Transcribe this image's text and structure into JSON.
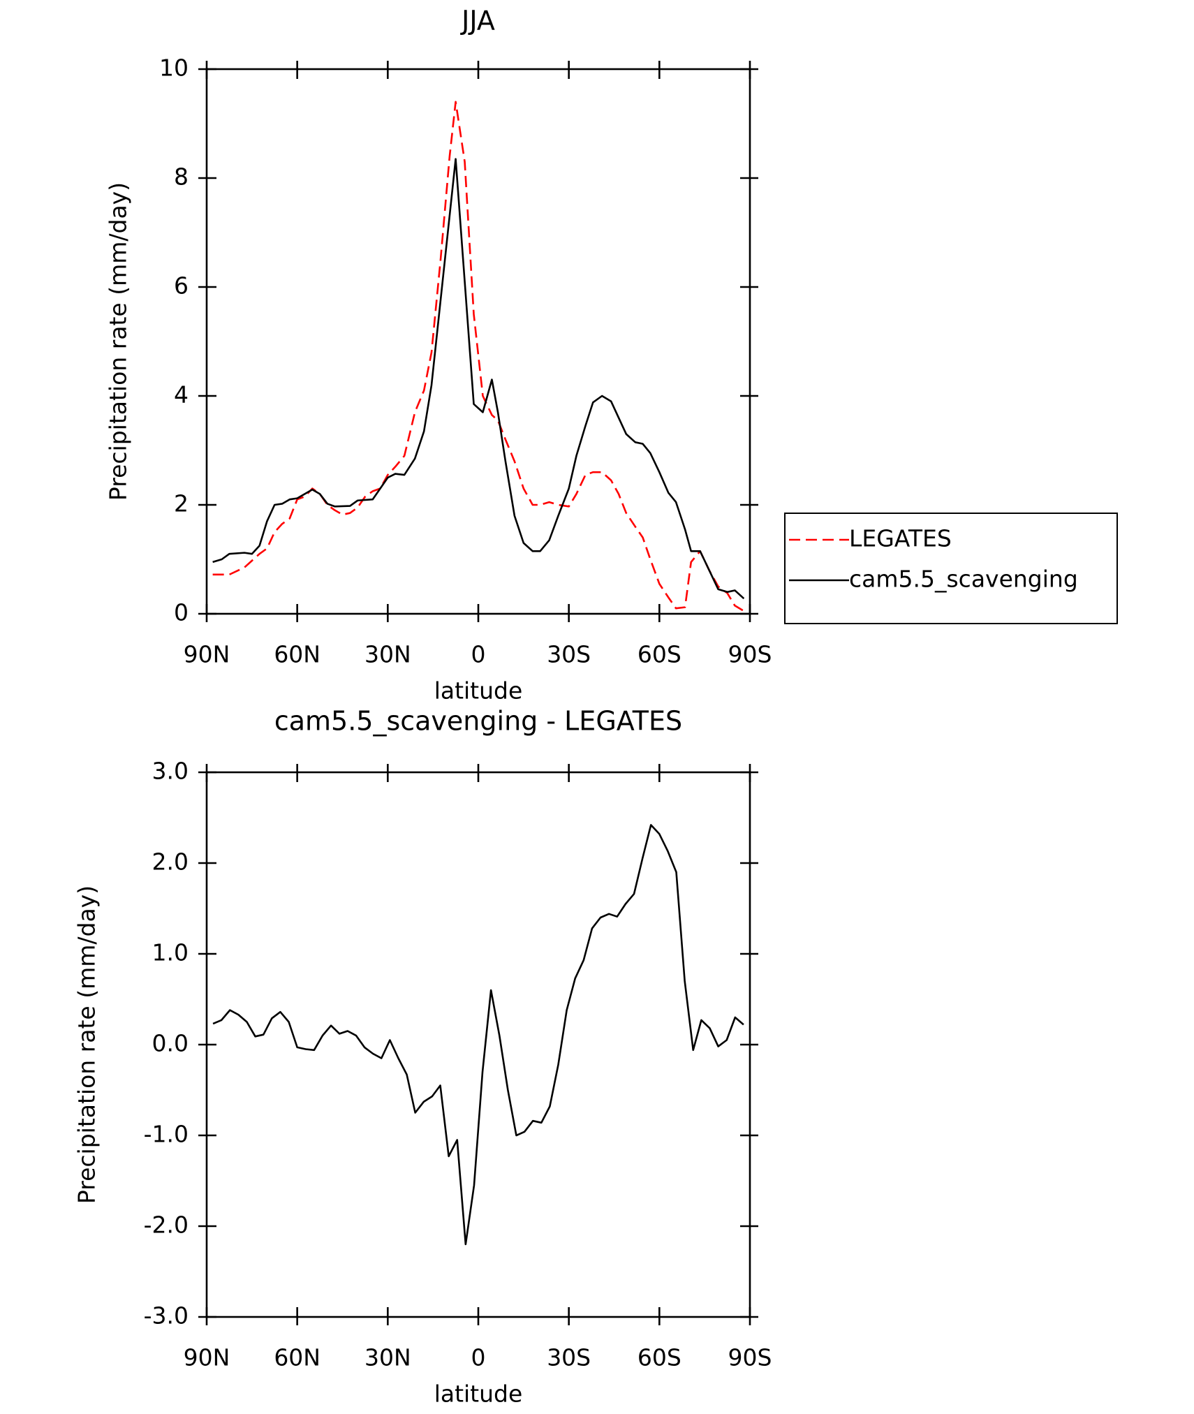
{
  "chart_data": [
    {
      "type": "line",
      "title": "JJA",
      "xlabel": "latitude",
      "ylabel": "Precipitation rate (mm/day)",
      "xlim": [
        90,
        -90
      ],
      "xticks": [
        {
          "value": 90,
          "label": "90N"
        },
        {
          "value": 60,
          "label": "60N"
        },
        {
          "value": 30,
          "label": "30N"
        },
        0,
        {
          "value": -30,
          "label": "30S"
        },
        {
          "value": -60,
          "label": "60S"
        },
        {
          "value": -90,
          "label": "90S"
        }
      ],
      "ylim": [
        0,
        10
      ],
      "yticks": [
        0,
        2,
        4,
        6,
        8,
        10
      ],
      "legend": "right",
      "series": [
        {
          "name": "LEGATES",
          "color": "#ff0000",
          "linestyle": "dashed",
          "x": [
            88,
            82.5,
            77.5,
            72.5,
            70,
            67.5,
            65,
            62.5,
            60,
            57.5,
            55,
            52.5,
            50,
            47.5,
            45,
            42.5,
            40,
            37.5,
            35,
            32.5,
            30,
            27.5,
            24.5,
            21,
            18,
            15.5,
            12.5,
            9.5,
            7.5,
            4.5,
            1.5,
            -1.5,
            -4.5,
            -6.5,
            -9,
            -12,
            -15,
            -18,
            -20.5,
            -23.5,
            -26.5,
            -30,
            -32.5,
            -35.5,
            -38,
            -41,
            -44,
            -46.5,
            -49,
            -52,
            -54.5,
            -57,
            -60,
            -63,
            -65.5,
            -68.5,
            -70.5,
            -73.5,
            -76.5,
            -79.5,
            -82.5,
            -85,
            -88
          ],
          "values": [
            0.72,
            0.72,
            0.85,
            1.1,
            1.2,
            1.5,
            1.65,
            1.75,
            2.1,
            2.15,
            2.3,
            2.2,
            2.0,
            1.9,
            1.82,
            1.85,
            1.95,
            2.15,
            2.25,
            2.3,
            2.55,
            2.7,
            2.9,
            3.7,
            4.1,
            4.8,
            6.5,
            8.4,
            9.4,
            8.3,
            5.5,
            4.0,
            3.65,
            3.55,
            3.2,
            2.8,
            2.3,
            2.0,
            2.0,
            2.05,
            2.0,
            1.97,
            2.2,
            2.55,
            2.6,
            2.6,
            2.45,
            2.2,
            1.85,
            1.6,
            1.4,
            1.0,
            0.55,
            0.3,
            0.1,
            0.12,
            0.95,
            1.15,
            0.8,
            0.5,
            0.38,
            0.15,
            0.05
          ]
        },
        {
          "name": "cam5.5_scavenging",
          "color": "#000000",
          "linestyle": "solid",
          "x": [
            88,
            85,
            82.5,
            77.5,
            75,
            72.5,
            70,
            67.5,
            65,
            62.5,
            60,
            57.5,
            55,
            52.5,
            50,
            47.5,
            42.5,
            40,
            35,
            30,
            27.5,
            24.5,
            21,
            18,
            15.5,
            7.5,
            1.5,
            -1.5,
            -4.5,
            -6.5,
            -9,
            -12,
            -15,
            -18,
            -20.5,
            -23.5,
            -26.5,
            -30,
            -32.5,
            -35.5,
            -38,
            -41,
            -44,
            -46.5,
            -49,
            -52,
            -54.5,
            -57,
            -60,
            -63,
            -65.5,
            -68.5,
            -70.5,
            -73.5,
            -76.5,
            -79.5,
            -82.5,
            -85,
            -88
          ],
          "values": [
            0.95,
            1.0,
            1.1,
            1.12,
            1.1,
            1.25,
            1.7,
            2.0,
            2.02,
            2.1,
            2.12,
            2.2,
            2.28,
            2.2,
            2.02,
            1.97,
            1.98,
            2.08,
            2.1,
            2.5,
            2.57,
            2.55,
            2.85,
            3.35,
            4.2,
            8.35,
            3.85,
            3.7,
            4.3,
            3.7,
            2.8,
            1.8,
            1.3,
            1.15,
            1.15,
            1.35,
            1.8,
            2.3,
            2.9,
            3.45,
            3.88,
            4.0,
            3.9,
            3.6,
            3.3,
            3.15,
            3.12,
            2.95,
            2.6,
            2.22,
            2.05,
            1.55,
            1.15,
            1.15,
            0.8,
            0.45,
            0.4,
            0.43,
            0.28
          ]
        }
      ]
    },
    {
      "type": "line",
      "title": "cam5.5_scavenging - LEGATES",
      "xlabel": "latitude",
      "ylabel": "Precipitation rate (mm/day)",
      "xlim": [
        90,
        -90
      ],
      "xticks": [
        {
          "value": 90,
          "label": "90N"
        },
        {
          "value": 60,
          "label": "60N"
        },
        {
          "value": 30,
          "label": "30N"
        },
        0,
        {
          "value": -30,
          "label": "30S"
        },
        {
          "value": -60,
          "label": "60S"
        },
        {
          "value": -90,
          "label": "90S"
        }
      ],
      "ylim": [
        -3,
        3
      ],
      "yticks": [
        {
          "value": -3,
          "label": "-3.0"
        },
        {
          "value": -2,
          "label": "-2.0"
        },
        {
          "value": -1,
          "label": "-1.0"
        },
        {
          "value": 0,
          "label": "0.0"
        },
        {
          "value": 1,
          "label": "1.0"
        },
        {
          "value": 2,
          "label": "2.0"
        },
        {
          "value": 3,
          "label": "3.0"
        }
      ],
      "x": [
        87.9,
        85.1,
        82.3,
        79.5,
        76.7,
        73.9,
        71.2,
        68.4,
        65.6,
        62.8,
        60.0,
        57.2,
        54.4,
        51.6,
        48.8,
        46.0,
        43.3,
        40.5,
        37.7,
        34.9,
        32.1,
        29.3,
        26.5,
        23.7,
        20.9,
        18.1,
        15.3,
        12.6,
        9.8,
        7.0,
        4.2,
        1.4,
        -1.4,
        -4.2,
        -7.0,
        -9.8,
        -12.6,
        -15.3,
        -18.1,
        -20.9,
        -23.7,
        -26.5,
        -29.3,
        -32.1,
        -34.9,
        -37.7,
        -40.5,
        -43.3,
        -46.0,
        -48.8,
        -51.6,
        -54.4,
        -57.2,
        -60.0,
        -62.8,
        -65.6,
        -68.4,
        -71.2,
        -73.9,
        -76.7,
        -79.5,
        -82.3,
        -85.1,
        -87.9
      ],
      "series": [
        {
          "color": "#000000",
          "linestyle": "solid",
          "values": [
            0.23,
            0.27,
            0.38,
            0.33,
            0.25,
            0.09,
            0.11,
            0.29,
            0.36,
            0.25,
            -0.03,
            -0.05,
            -0.06,
            0.1,
            0.21,
            0.12,
            0.15,
            0.1,
            -0.03,
            -0.1,
            -0.15,
            0.05,
            -0.15,
            -0.33,
            -0.75,
            -0.63,
            -0.57,
            -0.45,
            -1.23,
            -1.05,
            -2.2,
            -1.55,
            -0.3,
            0.6,
            0.1,
            -0.5,
            -1.0,
            -0.96,
            -0.84,
            -0.86,
            -0.68,
            -0.22,
            0.38,
            0.73,
            0.93,
            1.28,
            1.4,
            1.44,
            1.41,
            1.55,
            1.66,
            2.05,
            2.42,
            2.32,
            2.13,
            1.9,
            0.7,
            -0.06,
            0.27,
            0.18,
            -0.02,
            0.05,
            0.3,
            0.22
          ]
        }
      ]
    }
  ]
}
